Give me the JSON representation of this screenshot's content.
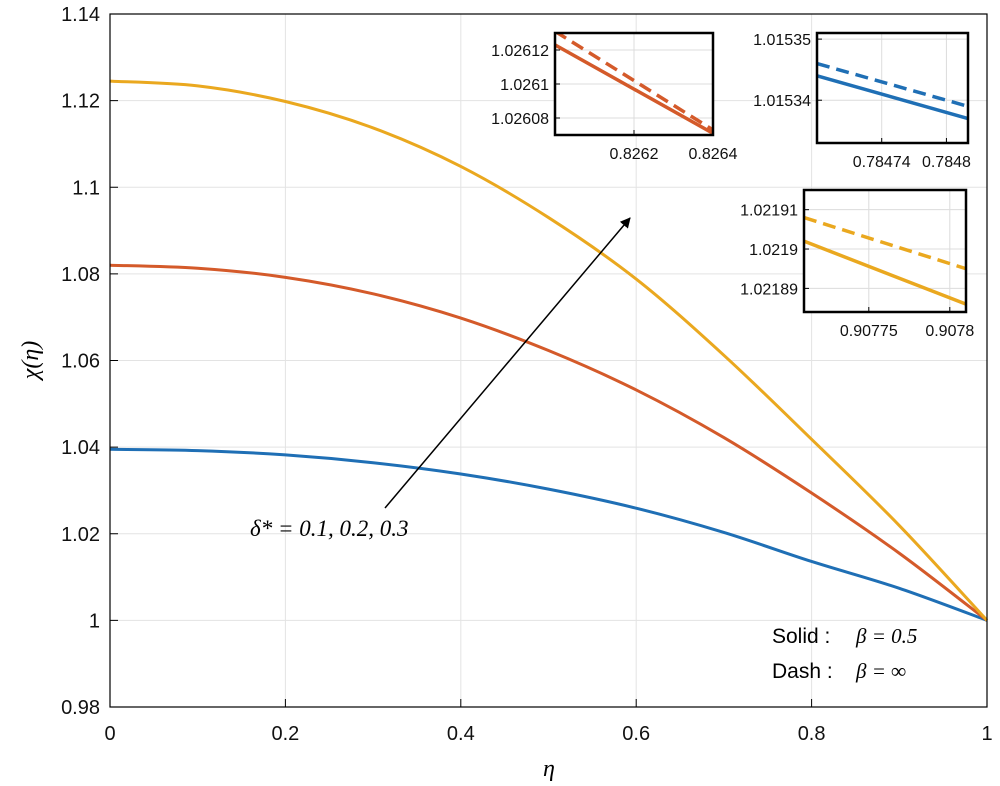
{
  "chart_data": {
    "type": "line",
    "xlabel": "η",
    "ylabel": "χ(η)",
    "xlim": [
      0,
      1
    ],
    "ylim": [
      0.98,
      1.14
    ],
    "grid": true,
    "x_ticks": [
      "0",
      "0.2",
      "0.4",
      "0.6",
      "0.8",
      "1"
    ],
    "y_ticks": [
      "0.98",
      "1",
      "1.02",
      "1.04",
      "1.06",
      "1.08",
      "1.1",
      "1.12",
      "1.14"
    ],
    "x": [
      0,
      0.1,
      0.2,
      0.3,
      0.4,
      0.5,
      0.6,
      0.7,
      0.8,
      0.9,
      1.0
    ],
    "series": [
      {
        "name": "δ* = 0.1",
        "color": "#1f6fb5",
        "style": "solid",
        "values": [
          1.0395,
          1.0392,
          1.0382,
          1.0364,
          1.0338,
          1.0303,
          1.0259,
          1.0203,
          1.0136,
          1.0074,
          1.0
        ]
      },
      {
        "name": "δ* = 0.2",
        "color": "#d45a2a",
        "style": "solid",
        "values": [
          1.082,
          1.0813,
          1.0792,
          1.0754,
          1.0698,
          1.0623,
          1.0532,
          1.0422,
          1.0294,
          1.0155,
          1.0
        ]
      },
      {
        "name": "δ* = 0.3",
        "color": "#eaa81f",
        "style": "solid",
        "values": [
          1.1245,
          1.1234,
          1.1198,
          1.1137,
          1.1048,
          1.093,
          1.0788,
          1.0612,
          1.0418,
          1.0219,
          1.0
        ]
      }
    ],
    "annotations": {
      "delta_label": "δ* = 0.1, 0.2, 0.3",
      "legend_solid_prefix": "Solid :",
      "legend_solid_value": "β = 0.5",
      "legend_dash_prefix": "Dash :",
      "legend_dash_value": "β = ∞"
    },
    "insets": [
      {
        "id": "red",
        "color": "#d45a2a",
        "xlim": [
          0.826,
          0.8264
        ],
        "ylim": [
          1.02607,
          1.02613
        ],
        "x_ticks": [
          "0.8262",
          "0.8264"
        ],
        "y_ticks": [
          "1.02612",
          "1.0261",
          "1.02608"
        ],
        "x_tick_values": [
          0.8262,
          0.8264
        ],
        "y_tick_values": [
          1.02612,
          1.0261,
          1.02608
        ],
        "solid": [
          [
            0.826,
            1.026123
          ],
          [
            0.8264,
            1.026071
          ]
        ],
        "dash": [
          [
            0.826,
            1.026131
          ],
          [
            0.8264,
            1.026073
          ]
        ]
      },
      {
        "id": "blue",
        "color": "#1f6fb5",
        "xlim": [
          0.78468,
          0.78482
        ],
        "ylim": [
          1.015333,
          1.015351
        ],
        "x_ticks": [
          "0.78474",
          "0.7848"
        ],
        "y_ticks": [
          "1.01535",
          "1.01534"
        ],
        "x_tick_values": [
          0.78474,
          0.7848
        ],
        "y_tick_values": [
          1.01535,
          1.01534
        ],
        "solid": [
          [
            0.78468,
            1.015344
          ],
          [
            0.78482,
            1.015337
          ]
        ],
        "dash": [
          [
            0.78468,
            1.015346
          ],
          [
            0.78482,
            1.015339
          ]
        ]
      },
      {
        "id": "yellow",
        "color": "#eaa81f",
        "xlim": [
          0.90771,
          0.90781
        ],
        "ylim": [
          1.021884,
          1.021915
        ],
        "x_ticks": [
          "0.90775",
          "0.9078"
        ],
        "y_ticks": [
          "1.02191",
          "1.0219",
          "1.02189"
        ],
        "x_tick_values": [
          0.90775,
          0.9078
        ],
        "y_tick_values": [
          1.02191,
          1.0219,
          1.02189
        ],
        "solid": [
          [
            0.90771,
            1.021902
          ],
          [
            0.90781,
            1.021886
          ]
        ],
        "dash": [
          [
            0.90771,
            1.021908
          ],
          [
            0.90781,
            1.021895
          ]
        ]
      }
    ]
  }
}
